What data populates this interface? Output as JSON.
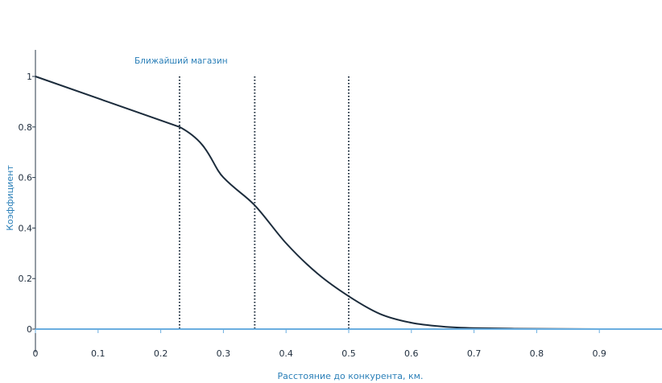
{
  "chart_data": {
    "type": "line",
    "title": "",
    "xlabel": "Расстояние до конкурента, км.",
    "ylabel": "Коэффициент",
    "xlim": [
      0,
      1
    ],
    "ylim": [
      0,
      1.1
    ],
    "x_ticks": [
      0,
      0.1,
      0.2,
      0.3,
      0.4,
      0.5,
      0.6,
      0.7,
      0.8,
      0.9
    ],
    "x_tick_labels": [
      "0",
      "0.1",
      "0.2",
      "0.3",
      "0.4",
      "0.5",
      "0.6",
      "0.7",
      "0.8",
      "0.9"
    ],
    "y_ticks": [
      0,
      0.2,
      0.4,
      0.6,
      0.8,
      1
    ],
    "y_tick_labels": [
      "0",
      "0.2",
      "0.4",
      "0.6",
      "0.8",
      "1"
    ],
    "grid": false,
    "series": [
      {
        "x": [
          0,
          0.23,
          0.3,
          0.35,
          0.4,
          0.45,
          0.5,
          0.55,
          0.6,
          0.65,
          0.7,
          0.8,
          0.9,
          1.0
        ],
        "y": [
          1.0,
          0.8,
          0.6,
          0.49,
          0.34,
          0.22,
          0.13,
          0.06,
          0.025,
          0.01,
          0.004,
          0.001,
          0.0,
          0.0
        ]
      }
    ],
    "vertical_lines": [
      0.23,
      0.35,
      0.5
    ],
    "annotations": [
      {
        "text": "Ближайший магазин",
        "x": 0.23
      }
    ],
    "colors": {
      "curve": "#1c2c3c",
      "vlines": "#1c2c3c",
      "x_axis": "#6aaee0",
      "y_axis": "#2a3a4a",
      "label_accent": "#2a7fb8"
    }
  }
}
